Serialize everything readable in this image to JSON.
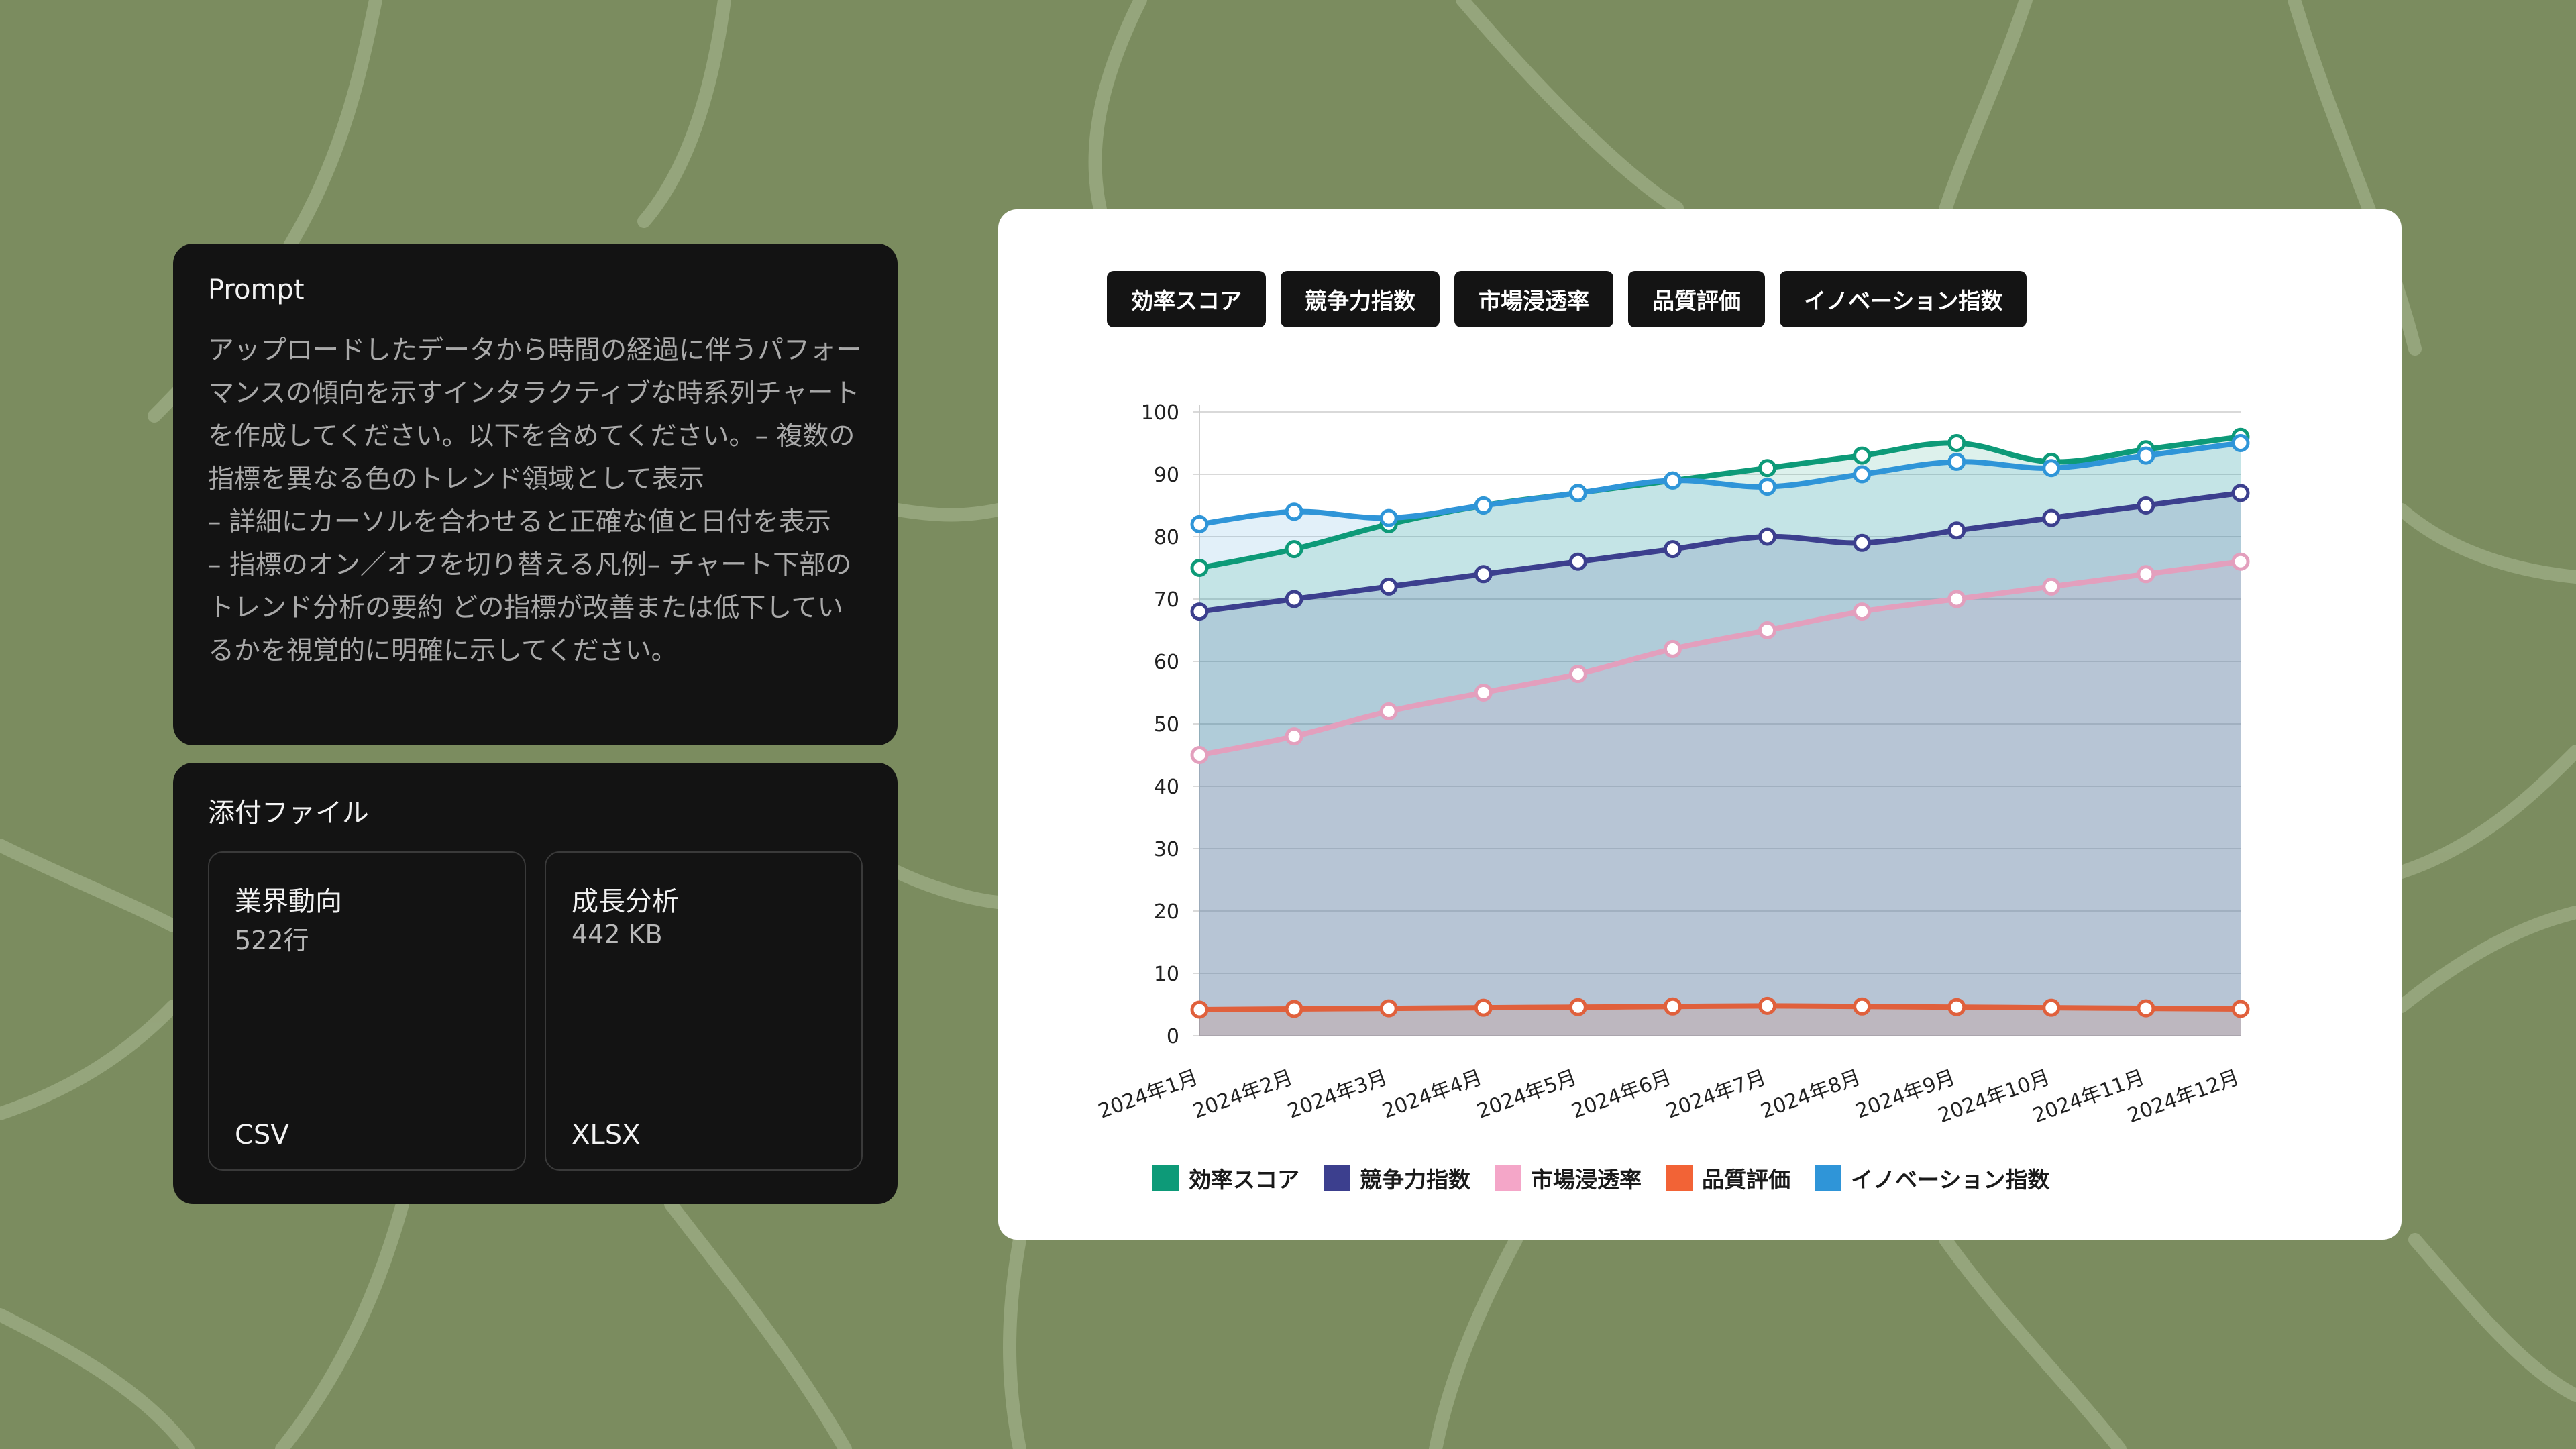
{
  "prompt": {
    "title": "Prompt",
    "text": "アップロードしたデータから時間の経過に伴うパフォーマンスの傾向を示すインタラクティブな時系列チャートを作成してください。以下を含めてください。– 複数の指標を異なる色のトレンド領域として表示\n– 詳細にカーソルを合わせると正確な値と日付を表示\n– 指標のオン／オフを切り替える凡例– チャート下部のトレンド分析の要約 どの指標が改善または低下しているかを視覚的に明確に示してください。"
  },
  "attachments": {
    "title": "添付ファイル",
    "files": [
      {
        "name": "業界動向",
        "meta": "522行",
        "type": "CSV"
      },
      {
        "name": "成長分析",
        "meta": "442 KB",
        "type": "XLSX"
      }
    ]
  },
  "colors": {
    "background": "#7b8c5f",
    "panel": "#131313",
    "efficiency": "#0d9a78",
    "competitiveness": "#3c3f8e",
    "market": "#e39fbd",
    "quality": "#e0603c",
    "innovation": "#2f95d8"
  },
  "chart_data": {
    "type": "area",
    "categories": [
      "2024年1月",
      "2024年2月",
      "2024年3月",
      "2024年4月",
      "2024年5月",
      "2024年6月",
      "2024年7月",
      "2024年8月",
      "2024年9月",
      "2024年10月",
      "2024年11月",
      "2024年12月"
    ],
    "ylim": [
      0,
      100
    ],
    "yticks": [
      0,
      10,
      20,
      30,
      40,
      50,
      60,
      70,
      80,
      90,
      100
    ],
    "grid": true,
    "legend_position": "bottom",
    "series": [
      {
        "name": "効率スコア",
        "color": "#0d9a78",
        "values": [
          75,
          78,
          82,
          85,
          87,
          89,
          91,
          93,
          95,
          92,
          94,
          96
        ]
      },
      {
        "name": "競争力指数",
        "color": "#3c3f8e",
        "values": [
          68,
          70,
          72,
          74,
          76,
          78,
          80,
          79,
          81,
          83,
          85,
          87
        ]
      },
      {
        "name": "市場浸透率",
        "color": "#e39fbd",
        "values": [
          45,
          48,
          52,
          55,
          58,
          62,
          65,
          68,
          70,
          72,
          74,
          76
        ]
      },
      {
        "name": "品質評価",
        "color": "#e0603c",
        "values": [
          4.2,
          4.3,
          4.4,
          4.5,
          4.6,
          4.7,
          4.8,
          4.7,
          4.6,
          4.5,
          4.4,
          4.3
        ]
      },
      {
        "name": "イノベーション指数",
        "color": "#2f95d8",
        "values": [
          82,
          84,
          83,
          85,
          87,
          89,
          88,
          90,
          92,
          91,
          93,
          95
        ]
      }
    ]
  }
}
